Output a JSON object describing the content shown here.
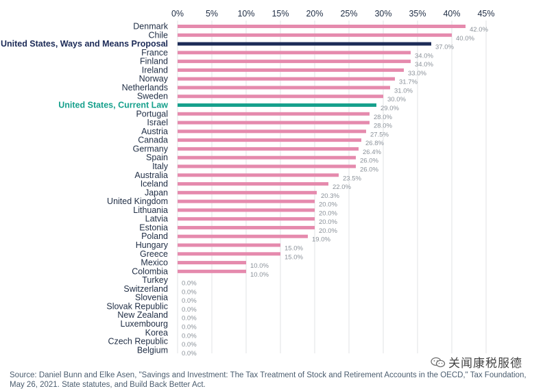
{
  "chart_data": {
    "type": "bar",
    "orientation": "horizontal",
    "xlim": [
      0,
      45
    ],
    "x_ticks": [
      "0%",
      "5%",
      "10%",
      "15%",
      "20%",
      "25%",
      "30%",
      "35%",
      "40%",
      "45%"
    ],
    "grid": true,
    "categories": [
      "Denmark",
      "Chile",
      "United States, Ways and Means Proposal",
      "France",
      "Finland",
      "Ireland",
      "Norway",
      "Netherlands",
      "Sweden",
      "United States, Current Law",
      "Portugal",
      "Israel",
      "Austria",
      "Canada",
      "Germany",
      "Spain",
      "Italy",
      "Australia",
      "Iceland",
      "Japan",
      "United Kingdom",
      "Lithuania",
      "Latvia",
      "Estonia",
      "Poland",
      "Hungary",
      "Greece",
      "Mexico",
      "Colombia",
      "Turkey",
      "Switzerland",
      "Slovenia",
      "Slovak Republic",
      "New Zealand",
      "Luxembourg",
      "Korea",
      "Czech Republic",
      "Belgium"
    ],
    "values": [
      42.0,
      40.0,
      37.0,
      34.0,
      34.0,
      33.0,
      31.7,
      31.0,
      30.0,
      29.0,
      28.0,
      28.0,
      27.5,
      26.8,
      26.4,
      26.0,
      26.0,
      23.5,
      22.0,
      20.3,
      20.0,
      20.0,
      20.0,
      20.0,
      19.0,
      15.0,
      15.0,
      10.0,
      10.0,
      0.0,
      0.0,
      0.0,
      0.0,
      0.0,
      0.0,
      0.0,
      0.0,
      0.0
    ],
    "value_labels": [
      "42.0%",
      "40.0%",
      "37.0%",
      "34.0%",
      "34.0%",
      "33.0%",
      "31.7%",
      "31.0%",
      "30.0%",
      "29.0%",
      "28.0%",
      "28.0%",
      "27.5%",
      "26.8%",
      "26.4%",
      "26.0%",
      "26.0%",
      "23.5%",
      "22.0%",
      "20.3%",
      "20.0%",
      "20.0%",
      "20.0%",
      "20.0%",
      "19.0%",
      "15.0%",
      "15.0%",
      "10.0%",
      "10.0%",
      "0.0%",
      "0.0%",
      "0.0%",
      "0.0%",
      "0.0%",
      "0.0%",
      "0.0%",
      "0.0%",
      "0.0%"
    ],
    "highlights": {
      "United States, Ways and Means Proposal": "navy",
      "United States, Current Law": "teal"
    }
  },
  "colors": {
    "bar_default": "#e58aad",
    "bar_navy": "#1c2b57",
    "bar_teal": "#16a08c",
    "label_text": "#1f2d44",
    "value_text": "#8a9199",
    "tick_text": "#1f2d44",
    "grid": "#e1e3e6"
  },
  "source": "Source: Daniel Bunn and Elke Asen, \"Savings and Investment: The Tax Treatment of Stock and Retirement Accounts in the OECD,\" Tax Foundation, May 26, 2021. State statutes, and Build Back Better Act.",
  "watermark": {
    "text": "关闻康税服德",
    "icon": "wechat-icon"
  }
}
